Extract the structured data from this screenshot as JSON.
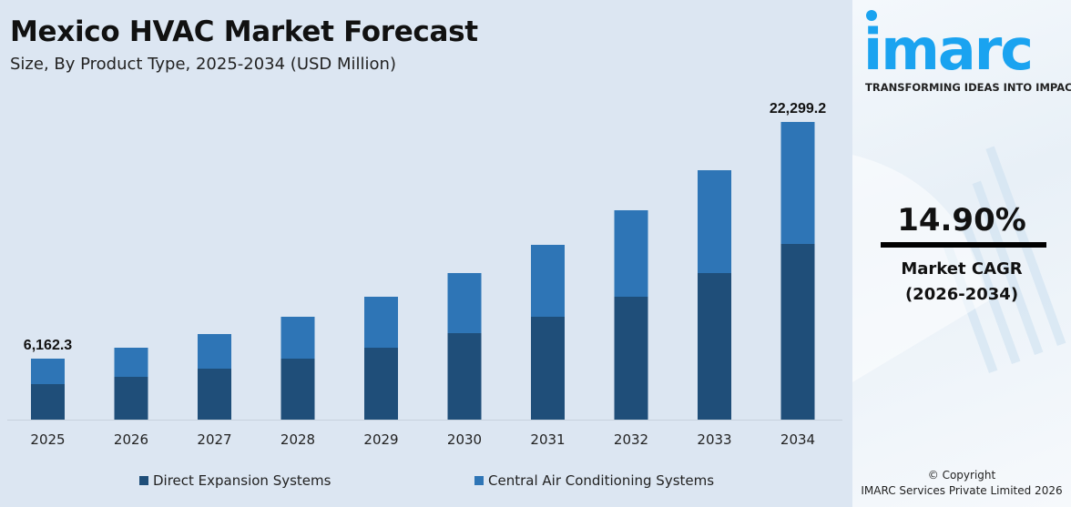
{
  "header": {
    "title": "Mexico HVAC Market Forecast",
    "subtitle": "Size, By Product Type, 2025-2034 (USD Million)"
  },
  "chart_data": {
    "type": "bar",
    "stacked": true,
    "title": "Mexico HVAC Market Forecast",
    "subtitle": "Size, By Product Type, 2025-2034 (USD Million)",
    "xlabel": "",
    "ylabel": "",
    "grid": false,
    "legend_position": "bottom",
    "categories": [
      "2025",
      "2026",
      "2027",
      "2028",
      "2029",
      "2030",
      "2031",
      "2032",
      "2033",
      "2034"
    ],
    "series": [
      {
        "name": "Direct Expansion Systems",
        "color": "#1f4e79",
        "values": [
          3587.0,
          4109,
          4669,
          5346,
          6075,
          7079,
          8192,
          9554,
          11169,
          13161.0
        ]
      },
      {
        "name": "Central Air Conditioning Systems",
        "color": "#2e75b6",
        "values": [
          2575.3,
          2798,
          3169,
          3671,
          4307,
          4917,
          5728,
          6724,
          7839,
          9138.2
        ]
      }
    ],
    "totals": [
      6162.3,
      6907,
      7838,
      9017,
      10382,
      11996,
      13920,
      16278,
      19008,
      22299.2
    ],
    "data_labels": [
      {
        "category": "2025",
        "text": "6,162.3"
      },
      {
        "category": "2034",
        "text": "22,299.2"
      }
    ]
  },
  "sidebar": {
    "logo_text": "imarc",
    "tagline": "TRANSFORMING IDEAS INTO IMPACT",
    "cagr_value": "14.90%",
    "cagr_label": "Market CAGR",
    "cagr_period": "(2026-2034)",
    "copyright_line1": "© Copyright",
    "copyright_line2": "IMARC Services Private Limited 2026",
    "brand_color": "#1aa3f0"
  }
}
